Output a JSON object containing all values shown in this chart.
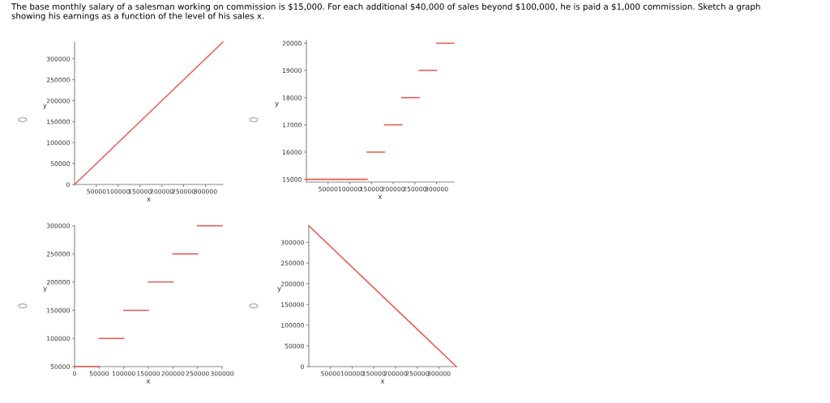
{
  "chart_data": [
    {
      "type": "line",
      "title": "The base monthly salary of a salesman working on commission is $15,000. For each additional $40,000 of sales beyond $100,000, he is paid a $1,000 commission. Sketch a graph showing his earnings as a function of the level of his sales x.",
      "xlabel": "x",
      "ylabel": "y",
      "xlim": [
        0,
        340000
      ],
      "ylim": [
        0,
        340000
      ],
      "xticks": [
        50000,
        100000,
        150000,
        200000,
        250000,
        300000
      ],
      "yticks": [
        0,
        50000,
        100000,
        150000,
        200000,
        250000,
        300000
      ],
      "grid": false,
      "series": [
        {
          "color": "#e8574f",
          "x": [
            0,
            340000
          ],
          "values": [
            0,
            340000
          ]
        }
      ]
    },
    {
      "type": "line",
      "xlabel": "x",
      "ylabel": "y",
      "xlim": [
        0,
        340000
      ],
      "ylim": [
        14900,
        20100
      ],
      "xticks": [
        50000,
        100000,
        150000,
        200000,
        250000,
        300000
      ],
      "yticks": [
        15000,
        16000,
        17000,
        18000,
        19000,
        20000
      ],
      "grid": false,
      "series": [
        {
          "color": "#e8574f",
          "x": [
            0,
            140000
          ],
          "values": [
            15000,
            15000
          ]
        },
        {
          "color": "#e8574f",
          "x": [
            140000,
            180000
          ],
          "values": [
            16000,
            16000
          ]
        },
        {
          "color": "#e8574f",
          "x": [
            180000,
            220000
          ],
          "values": [
            17000,
            17000
          ]
        },
        {
          "color": "#e8574f",
          "x": [
            220000,
            260000
          ],
          "values": [
            18000,
            18000
          ]
        },
        {
          "color": "#e8574f",
          "x": [
            260000,
            300000
          ],
          "values": [
            19000,
            19000
          ]
        },
        {
          "color": "#e8574f",
          "x": [
            300000,
            340000
          ],
          "values": [
            20000,
            20000
          ]
        }
      ]
    },
    {
      "type": "line",
      "xlabel": "x",
      "ylabel": "y",
      "xlim": [
        0,
        300000
      ],
      "ylim": [
        50000,
        300000
      ],
      "xticks": [
        0,
        50000,
        100000,
        150000,
        200000,
        250000,
        300000
      ],
      "yticks": [
        50000,
        100000,
        150000,
        200000,
        250000,
        300000
      ],
      "grid": false,
      "series": [
        {
          "color": "#e8574f",
          "x": [
            0,
            50000
          ],
          "values": [
            50000,
            50000
          ]
        },
        {
          "color": "#e8574f",
          "x": [
            50000,
            100000
          ],
          "values": [
            100000,
            100000
          ]
        },
        {
          "color": "#e8574f",
          "x": [
            100000,
            150000
          ],
          "values": [
            150000,
            150000
          ]
        },
        {
          "color": "#e8574f",
          "x": [
            150000,
            200000
          ],
          "values": [
            200000,
            200000
          ]
        },
        {
          "color": "#e8574f",
          "x": [
            200000,
            250000
          ],
          "values": [
            250000,
            250000
          ]
        },
        {
          "color": "#e8574f",
          "x": [
            250000,
            300000
          ],
          "values": [
            300000,
            300000
          ]
        }
      ]
    },
    {
      "type": "line",
      "xlabel": "x",
      "ylabel": "y",
      "xlim": [
        0,
        340000
      ],
      "ylim": [
        0,
        340000
      ],
      "xticks": [
        50000,
        100000,
        150000,
        200000,
        250000,
        300000
      ],
      "yticks": [
        0,
        50000,
        100000,
        150000,
        200000,
        250000,
        300000
      ],
      "grid": false,
      "series": [
        {
          "color": "#e8574f",
          "x": [
            0,
            340000
          ],
          "values": [
            340000,
            0
          ]
        }
      ]
    }
  ]
}
